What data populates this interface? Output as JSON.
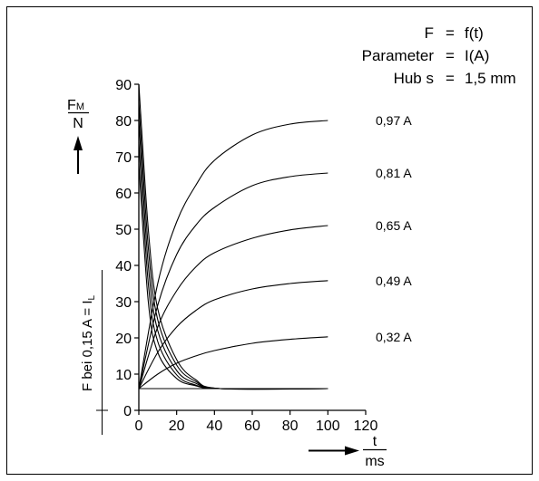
{
  "chart_data": {
    "type": "line",
    "title_lines": [
      {
        "left": "F",
        "eq": "=",
        "right": "f(t)"
      },
      {
        "left": "Parameter",
        "eq": "=",
        "right": "I(A)"
      },
      {
        "left": "Hub s",
        "eq": "=",
        "right": "1,5 mm"
      }
    ],
    "ylabel": {
      "top_main": "F",
      "top_sub": "M",
      "bottom": "N"
    },
    "xlabel": {
      "top": "t",
      "bottom": "ms"
    },
    "side_label": {
      "main": "F bei 0,15 A = I",
      "sub": "L"
    },
    "xlim": [
      0,
      120
    ],
    "ylim": [
      0,
      90
    ],
    "x_ticks": [
      0,
      20,
      40,
      60,
      80,
      100,
      120
    ],
    "y_ticks": [
      0,
      10,
      20,
      30,
      40,
      50,
      60,
      70,
      80,
      90
    ],
    "baseline_force": 6,
    "rising_series": [
      {
        "name": "0,97 A",
        "points": [
          [
            0,
            6
          ],
          [
            10,
            35
          ],
          [
            20,
            52
          ],
          [
            30,
            62
          ],
          [
            40,
            69
          ],
          [
            60,
            76
          ],
          [
            80,
            79
          ],
          [
            100,
            80
          ]
        ]
      },
      {
        "name": "0,81 A",
        "points": [
          [
            0,
            6
          ],
          [
            10,
            29
          ],
          [
            20,
            43
          ],
          [
            30,
            51
          ],
          [
            40,
            56
          ],
          [
            60,
            62
          ],
          [
            80,
            64.5
          ],
          [
            100,
            65.5
          ]
        ]
      },
      {
        "name": "0,65 A",
        "points": [
          [
            0,
            6
          ],
          [
            10,
            23
          ],
          [
            20,
            33
          ],
          [
            30,
            39.5
          ],
          [
            40,
            43.5
          ],
          [
            60,
            47.5
          ],
          [
            80,
            49.8
          ],
          [
            100,
            51
          ]
        ]
      },
      {
        "name": "0,49 A",
        "points": [
          [
            0,
            6
          ],
          [
            10,
            16
          ],
          [
            20,
            23
          ],
          [
            30,
            27.5
          ],
          [
            40,
            30.5
          ],
          [
            60,
            33.5
          ],
          [
            80,
            35
          ],
          [
            100,
            35.8
          ]
        ]
      },
      {
        "name": "0,32 A",
        "points": [
          [
            0,
            6
          ],
          [
            10,
            10
          ],
          [
            20,
            13
          ],
          [
            30,
            15
          ],
          [
            40,
            16.5
          ],
          [
            60,
            18.5
          ],
          [
            80,
            19.6
          ],
          [
            100,
            20.3
          ]
        ]
      }
    ],
    "falling_series": [
      {
        "points": [
          [
            0,
            90
          ],
          [
            5,
            50
          ],
          [
            10,
            28
          ],
          [
            20,
            14
          ],
          [
            30,
            8.5
          ],
          [
            43,
            6
          ],
          [
            100,
            6
          ]
        ]
      },
      {
        "points": [
          [
            0,
            85
          ],
          [
            5,
            45
          ],
          [
            10,
            25
          ],
          [
            20,
            12.5
          ],
          [
            30,
            8
          ],
          [
            43,
            6
          ],
          [
            100,
            6
          ]
        ]
      },
      {
        "points": [
          [
            0,
            80
          ],
          [
            5,
            40
          ],
          [
            10,
            22
          ],
          [
            20,
            11
          ],
          [
            30,
            7.5
          ],
          [
            43,
            6
          ],
          [
            100,
            6
          ]
        ]
      },
      {
        "points": [
          [
            0,
            74
          ],
          [
            5,
            35
          ],
          [
            10,
            19
          ],
          [
            20,
            9.8
          ],
          [
            30,
            7
          ],
          [
            43,
            6
          ],
          [
            100,
            6
          ]
        ]
      },
      {
        "points": [
          [
            0,
            68
          ],
          [
            5,
            30
          ],
          [
            10,
            16
          ],
          [
            20,
            8.8
          ],
          [
            30,
            6.8
          ],
          [
            43,
            6
          ],
          [
            100,
            6
          ]
        ]
      }
    ]
  }
}
